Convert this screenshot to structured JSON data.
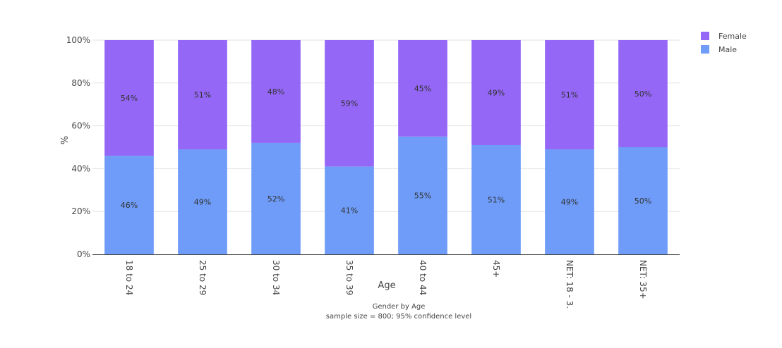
{
  "chart_data": {
    "type": "bar",
    "stacked": true,
    "categories": [
      "18 to 24",
      "25 to 29",
      "30 to 34",
      "35 to 39",
      "40 to 44",
      "45+",
      "NET: 18 - 3.",
      "NET: 35+"
    ],
    "series": [
      {
        "name": "Male",
        "color": "#6e9cf8",
        "values": [
          46,
          49,
          52,
          41,
          55,
          51,
          49,
          50
        ],
        "value_labels": [
          "46%",
          "49%",
          "52%",
          "41%",
          "55%",
          "51%",
          "49%",
          "50%"
        ]
      },
      {
        "name": "Female",
        "color": "#9467f7",
        "values": [
          54,
          51,
          48,
          59,
          45,
          49,
          51,
          50
        ],
        "value_labels": [
          "54%",
          "51%",
          "48%",
          "59%",
          "45%",
          "49%",
          "51%",
          "50%"
        ]
      }
    ],
    "xlabel": "Age",
    "ylabel": "%",
    "ylim": [
      0,
      100
    ],
    "yticks": [
      0,
      20,
      40,
      60,
      80,
      100
    ],
    "ytick_labels": [
      "0%",
      "20%",
      "40%",
      "60%",
      "80%",
      "100%"
    ],
    "grid": true,
    "legend_position": "top-right",
    "legend_order": [
      "Female",
      "Male"
    ],
    "caption_line1": "Gender by Age",
    "caption_line2": "sample size = 800; 95% confidence level"
  }
}
